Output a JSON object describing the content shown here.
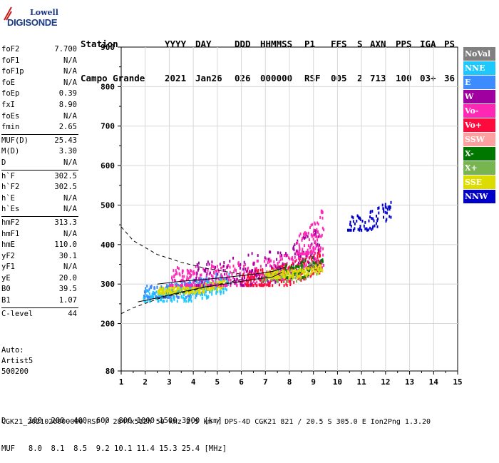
{
  "logo": {
    "line1": "Lowell",
    "line2": "DIGISONDE"
  },
  "header": {
    "labels": [
      "Station",
      "YYYY",
      "DAY",
      "DDD",
      "HHMMSS",
      "P1",
      "FFS",
      "S",
      "AXN",
      "PPS",
      "IGA",
      "PS"
    ],
    "values": [
      "Campo Grande",
      "2021",
      "Jan26",
      "026",
      "000000",
      "RSF",
      "005",
      "2",
      "713",
      "100",
      "03+",
      "36"
    ]
  },
  "params": {
    "group1": [
      {
        "k": "foF2",
        "v": "7.700"
      },
      {
        "k": "foF1",
        "v": "N/A"
      },
      {
        "k": "foF1p",
        "v": "N/A"
      },
      {
        "k": "foE",
        "v": "N/A"
      },
      {
        "k": "foEp",
        "v": "0.39"
      },
      {
        "k": "fxI",
        "v": "8.90"
      },
      {
        "k": "foEs",
        "v": "N/A"
      },
      {
        "k": "fmin",
        "v": "2.65"
      }
    ],
    "group2": [
      {
        "k": "MUF(D)",
        "v": "25.43"
      },
      {
        "k": "M(D)",
        "v": "3.30"
      },
      {
        "k": "D",
        "v": "N/A"
      }
    ],
    "group3": [
      {
        "k": "h`F",
        "v": "302.5"
      },
      {
        "k": "h`F2",
        "v": "302.5"
      },
      {
        "k": "h`E",
        "v": "N/A"
      },
      {
        "k": "h`Es",
        "v": "N/A"
      }
    ],
    "group4": [
      {
        "k": "hmF2",
        "v": "313.3"
      },
      {
        "k": "hmF1",
        "v": "N/A"
      },
      {
        "k": "hmE",
        "v": "110.0"
      },
      {
        "k": "yF2",
        "v": "30.1"
      },
      {
        "k": "yF1",
        "v": "N/A"
      },
      {
        "k": "yE",
        "v": "20.0"
      },
      {
        "k": "B0",
        "v": "39.5"
      },
      {
        "k": "B1",
        "v": "1.07"
      }
    ],
    "group5": [
      {
        "k": "C-level",
        "v": "44"
      }
    ]
  },
  "auto": {
    "line1": "Auto:",
    "line2": "Artist5",
    "line3": "500200"
  },
  "legend": [
    {
      "label": "NoVal",
      "color": "#808080"
    },
    {
      "label": "NNE",
      "color": "#1ec8ff"
    },
    {
      "label": "E",
      "color": "#3c8cff"
    },
    {
      "label": "W",
      "color": "#a000a0"
    },
    {
      "label": "Vo-",
      "color": "#ff28b4"
    },
    {
      "label": "Vo+",
      "color": "#ff0a3c"
    },
    {
      "label": "SSW",
      "color": "#ffa0a0"
    },
    {
      "label": "X-",
      "color": "#007800"
    },
    {
      "label": "X+",
      "color": "#78b450"
    },
    {
      "label": "SSE",
      "color": "#dcdc00"
    },
    {
      "label": "NNW",
      "color": "#0000c8"
    }
  ],
  "bottom": {
    "d_row": "D     100  200  400  600  800 1000 1500 3000 [km]",
    "muf_row": "MUF   8.0  8.1  8.5  9.2 10.1 11.4 15.3 25.4 [MHz]",
    "footer": "CGK21_2021026000000.RSF / 284fx512h 50 kHz 2.5 km / DPS-4D CGK21 821 / 20.5 S 305.0 E Ion2Png 1.3.20"
  },
  "chart_data": {
    "type": "scatter",
    "xlim": [
      1,
      15
    ],
    "ylim": [
      80,
      900
    ],
    "xticks": [
      1,
      2,
      3,
      4,
      5,
      6,
      7,
      8,
      9,
      10,
      11,
      12,
      13,
      14,
      15
    ],
    "yticks": [
      80,
      200,
      300,
      400,
      500,
      600,
      700,
      800,
      900
    ],
    "clusters": [
      {
        "color": "#3c8cff",
        "x": [
          1.9,
          5.2
        ],
        "y": [
          270,
          345
        ],
        "n": 260
      },
      {
        "color": "#1ec8ff",
        "x": [
          1.9,
          5.5
        ],
        "y": [
          260,
          340
        ],
        "n": 160
      },
      {
        "color": "#dcdc00",
        "x": [
          2.5,
          5.3
        ],
        "y": [
          280,
          320
        ],
        "n": 200
      },
      {
        "color": "#ff28b4",
        "x": [
          3.0,
          9.4
        ],
        "y": [
          300,
          420
        ],
        "n": 380
      },
      {
        "color": "#ff0a3c",
        "x": [
          6.0,
          9.3
        ],
        "y": [
          300,
          400
        ],
        "n": 220
      },
      {
        "color": "#a000a0",
        "x": [
          4.0,
          9.3
        ],
        "y": [
          300,
          470
        ],
        "n": 150
      },
      {
        "color": "#78b450",
        "x": [
          6.8,
          9.3
        ],
        "y": [
          310,
          380
        ],
        "n": 80
      },
      {
        "color": "#007800",
        "x": [
          7.5,
          9.4
        ],
        "y": [
          320,
          400
        ],
        "n": 50
      },
      {
        "color": "#dcdc00",
        "x": [
          7.0,
          9.4
        ],
        "y": [
          320,
          360
        ],
        "n": 120
      },
      {
        "color": "#ff28b4",
        "x": [
          8.3,
          9.4
        ],
        "y": [
          380,
          520
        ],
        "n": 80
      },
      {
        "color": "#0000c8",
        "x": [
          10.4,
          12.2
        ],
        "y": [
          440,
          530
        ],
        "n": 75
      }
    ],
    "profile_o": {
      "x": [
        1.7,
        2.5,
        3.5,
        4.5,
        5.5,
        6.5,
        7.3,
        7.7
      ],
      "y": [
        255,
        265,
        280,
        293,
        302,
        312,
        318,
        330
      ]
    },
    "profile_x": {
      "x": [
        2.5,
        3.5,
        4.5,
        5.5,
        6.5,
        7.3,
        7.8
      ],
      "y": [
        300,
        307,
        312,
        318,
        325,
        332,
        342
      ]
    },
    "dashed_upper": {
      "x": [
        1.0,
        1.5,
        2.5,
        3.5,
        4.5,
        5.5,
        6.0
      ],
      "y": [
        445,
        410,
        375,
        355,
        340,
        330,
        325
      ]
    },
    "dashed_lower": {
      "x": [
        1.0,
        1.5,
        2.5,
        3.5,
        4.5,
        5.5,
        6.0
      ],
      "y": [
        225,
        240,
        262,
        278,
        292,
        305,
        312
      ]
    }
  }
}
